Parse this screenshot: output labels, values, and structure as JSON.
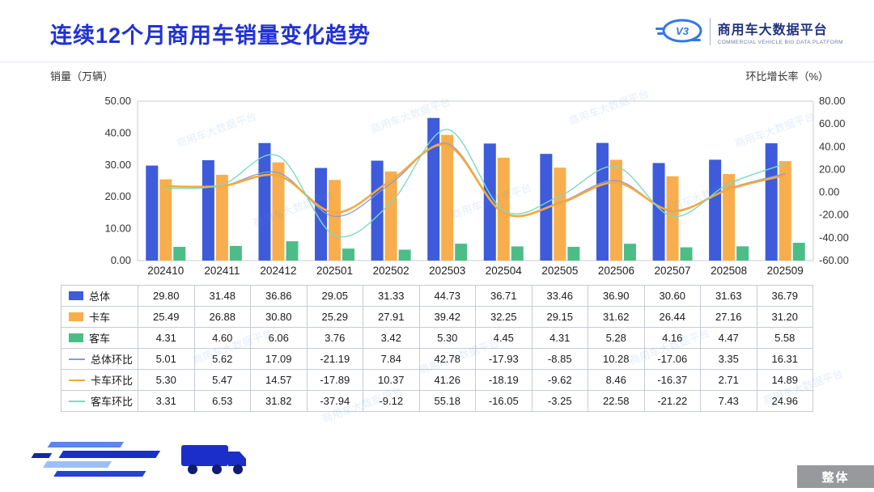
{
  "header": {
    "title": "连续12个月商用车销量变化趋势",
    "logo": {
      "icon_text": "V3",
      "name_cn": "商用车大数据平台",
      "name_en": "COMMERCIAL VEHICLE BIG DATA PLATFORM"
    }
  },
  "axis_titles": {
    "left": "销量（万辆）",
    "right": "环比增长率（%）"
  },
  "watermark_text": "商用车大数据平台",
  "footer": {
    "corner_label": "整体"
  },
  "colors": {
    "title": "#2132d3",
    "total_bar": "#3d5bdb",
    "truck_bar": "#f8ae4d",
    "bus_bar": "#4dbd87",
    "total_line": "#8a9bd8",
    "truck_line": "#f5a93f",
    "bus_line": "#7fd8c2"
  },
  "chart_data": {
    "type": "bar+line",
    "title": "连续12个月商用车销量变化趋势",
    "categories": [
      "202410",
      "202411",
      "202412",
      "202501",
      "202502",
      "202503",
      "202504",
      "202505",
      "202506",
      "202507",
      "202508",
      "202509"
    ],
    "left_axis": {
      "label": "销量（万辆）",
      "min": 0,
      "max": 50,
      "step": 10
    },
    "right_axis": {
      "label": "环比增长率（%）",
      "min": -60,
      "max": 80,
      "step": 20
    },
    "grid": false,
    "legend_position": "table-left",
    "bar_series": [
      {
        "name": "总体",
        "color": "#3d5bdb",
        "values": [
          29.8,
          31.48,
          36.86,
          29.05,
          31.33,
          44.73,
          36.71,
          33.46,
          36.9,
          30.6,
          31.63,
          36.79
        ]
      },
      {
        "name": "卡车",
        "color": "#f8ae4d",
        "values": [
          25.49,
          26.88,
          30.8,
          25.29,
          27.91,
          39.42,
          32.25,
          29.15,
          31.62,
          26.44,
          27.16,
          31.2
        ]
      },
      {
        "name": "客车",
        "color": "#4dbd87",
        "values": [
          4.31,
          4.6,
          6.06,
          3.76,
          3.42,
          5.3,
          4.45,
          4.31,
          5.28,
          4.16,
          4.47,
          5.58
        ]
      }
    ],
    "line_series": [
      {
        "name": "总体环比",
        "color": "#8a9bd8",
        "values": [
          5.01,
          5.62,
          17.09,
          -21.19,
          7.84,
          42.78,
          -17.93,
          -8.85,
          10.28,
          -17.06,
          3.35,
          16.31
        ]
      },
      {
        "name": "卡车环比",
        "color": "#f5a93f",
        "values": [
          5.3,
          5.47,
          14.57,
          -17.89,
          10.37,
          41.26,
          -18.19,
          -9.62,
          8.46,
          -16.37,
          2.71,
          14.89
        ]
      },
      {
        "name": "客车环比",
        "color": "#7fd8c2",
        "values": [
          3.31,
          6.53,
          31.82,
          -37.94,
          -9.12,
          55.18,
          -16.05,
          -3.25,
          22.58,
          -21.22,
          7.43,
          24.96
        ]
      }
    ]
  }
}
